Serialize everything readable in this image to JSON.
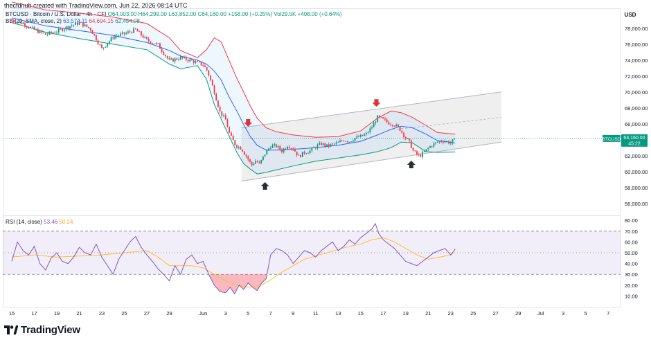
{
  "header": {
    "text": "thecfdhub created with TradingView.com, Jun 22, 2026 08:14 UTC"
  },
  "legend": {
    "symbol": "BTCUSD · Bitcoin / U.S. Dollar · 4h · CFI",
    "ohlc": "O64,003.00  H64,299.00  L63,852.00  C64,160.00  +158.00 (+0.25%)  Vol29.5K  +408.00 (+0.64%)",
    "bb_label": "BB (20, SMA, close, 2)",
    "bb_mid": "63,574.11",
    "bb_upper": "64,694.15",
    "bb_lower": "62,454.08",
    "rsi_label": "RSI (14, close)",
    "rsi_value": "53.46",
    "rsi_ma": "50.24"
  },
  "currency": "USD",
  "logo_text": "TradingView",
  "colors": {
    "up": "#089981",
    "down": "#f23645",
    "bb_mid": "#2962ff",
    "bb_upper": "#f23645",
    "bb_lower": "#089981",
    "rsi": "#7e57c2",
    "rsi_ma": "#fbc02d",
    "arrow_down": "#e0303a",
    "arrow_up": "#2a2e39"
  },
  "chart_data": {
    "type": "candlestick",
    "title": "BTCUSD · Bitcoin / U.S. Dollar · 4h · CFI",
    "price_axis": {
      "ylim": [
        54500,
        80500
      ],
      "ticks": [
        56000,
        58000,
        60000,
        62000,
        64000,
        66000,
        68000,
        70000,
        72000,
        74000,
        76000,
        78000
      ],
      "tick_labels": [
        "56,000.00",
        "58,000.00",
        "60,000.00",
        "62,000.00",
        "64,000.00",
        "66,000.00",
        "68,000.00",
        "70,000.00",
        "72,000.00",
        "74,000.00",
        "76,000.00",
        "78,000.00"
      ]
    },
    "x_axis": {
      "ticks": [
        0,
        2,
        4,
        6,
        8,
        10,
        12,
        14,
        17,
        19,
        21,
        23,
        25,
        27,
        29,
        31,
        33,
        35,
        37,
        39,
        41,
        43,
        45,
        47,
        49,
        51,
        53
      ],
      "tick_labels": [
        "15",
        "17",
        "19",
        "21",
        "23",
        "25",
        "27",
        "29",
        "Jun",
        "3",
        "5",
        "7",
        "9",
        "11",
        "13",
        "15",
        "17",
        "19",
        "21",
        "23",
        "25",
        "27",
        "29",
        "Jul",
        "3",
        "5",
        "7"
      ]
    },
    "last_price": {
      "label": "BTCUSD",
      "value": "64,160.00",
      "countdown": "45:22"
    },
    "keypoints": [
      [
        0,
        79000
      ],
      [
        1,
        78600
      ],
      [
        2,
        77800
      ],
      [
        3,
        77200
      ],
      [
        4,
        77600
      ],
      [
        5,
        78200
      ],
      [
        6,
        78700
      ],
      [
        7,
        77900
      ],
      [
        8,
        75400
      ],
      [
        9,
        76900
      ],
      [
        10,
        77300
      ],
      [
        11,
        77800
      ],
      [
        12,
        76500
      ],
      [
        13,
        75900
      ],
      [
        14,
        73900
      ],
      [
        15,
        74300
      ],
      [
        16,
        73900
      ],
      [
        17,
        73400
      ],
      [
        17.4,
        72600
      ],
      [
        18,
        70000
      ],
      [
        18.5,
        67500
      ],
      [
        19,
        66500
      ],
      [
        19.4,
        64500
      ],
      [
        19.9,
        63300
      ],
      [
        20.4,
        62900
      ],
      [
        20.9,
        61800
      ],
      [
        21.3,
        60800
      ],
      [
        21.7,
        61400
      ],
      [
        22,
        60900
      ],
      [
        22.6,
        62500
      ],
      [
        23,
        63200
      ],
      [
        23.5,
        63200
      ],
      [
        24,
        62600
      ],
      [
        24.5,
        63300
      ],
      [
        25,
        62900
      ],
      [
        25.5,
        61900
      ],
      [
        26,
        62400
      ],
      [
        26.5,
        62600
      ],
      [
        27,
        63100
      ],
      [
        27.5,
        63500
      ],
      [
        28,
        63200
      ],
      [
        28.5,
        63400
      ],
      [
        29,
        63600
      ],
      [
        29.5,
        64000
      ],
      [
        30,
        63800
      ],
      [
        30.5,
        64200
      ],
      [
        31,
        64400
      ],
      [
        31.5,
        64700
      ],
      [
        32,
        65600
      ],
      [
        32.5,
        66800
      ],
      [
        33,
        66500
      ],
      [
        33.5,
        66100
      ],
      [
        34,
        65900
      ],
      [
        34.5,
        65300
      ],
      [
        35,
        64200
      ],
      [
        35.3,
        63800
      ],
      [
        35.7,
        62500
      ],
      [
        36.2,
        61900
      ],
      [
        36.7,
        62500
      ],
      [
        37.2,
        63200
      ],
      [
        37.8,
        63700
      ],
      [
        38.4,
        63900
      ],
      [
        39,
        63600
      ],
      [
        39.4,
        64160
      ]
    ],
    "bb_upper_points": [
      [
        0,
        81300
      ],
      [
        3,
        80300
      ],
      [
        6,
        79900
      ],
      [
        9,
        79400
      ],
      [
        12,
        78600
      ],
      [
        14,
        76800
      ],
      [
        15,
        75200
      ],
      [
        16.5,
        74300
      ],
      [
        17.3,
        75300
      ],
      [
        18,
        76800
      ],
      [
        18.6,
        76300
      ],
      [
        19.3,
        74000
      ],
      [
        20,
        71700
      ],
      [
        20.6,
        70000
      ],
      [
        21.2,
        68200
      ],
      [
        21.8,
        66700
      ],
      [
        22.6,
        65500
      ],
      [
        23.5,
        65000
      ],
      [
        25,
        64600
      ],
      [
        27,
        64300
      ],
      [
        29,
        64400
      ],
      [
        31,
        65100
      ],
      [
        32.5,
        66700
      ],
      [
        33.7,
        67600
      ],
      [
        34.6,
        67400
      ],
      [
        35.6,
        66800
      ],
      [
        36.8,
        65800
      ],
      [
        37.8,
        64900
      ],
      [
        39.4,
        64700
      ]
    ],
    "bb_mid_points": [
      [
        0,
        79300
      ],
      [
        3,
        78300
      ],
      [
        6,
        77700
      ],
      [
        9,
        77100
      ],
      [
        12,
        76200
      ],
      [
        14,
        75200
      ],
      [
        15,
        74500
      ],
      [
        16.5,
        74000
      ],
      [
        17.3,
        73500
      ],
      [
        18,
        72600
      ],
      [
        18.6,
        71500
      ],
      [
        19.3,
        69400
      ],
      [
        20,
        67600
      ],
      [
        20.6,
        65900
      ],
      [
        21.2,
        64400
      ],
      [
        21.8,
        63300
      ],
      [
        22.6,
        62700
      ],
      [
        23.5,
        62700
      ],
      [
        25,
        62800
      ],
      [
        27,
        63000
      ],
      [
        29,
        63300
      ],
      [
        31,
        63800
      ],
      [
        32.5,
        64600
      ],
      [
        33.7,
        65300
      ],
      [
        34.6,
        65700
      ],
      [
        35.6,
        65500
      ],
      [
        36.8,
        64700
      ],
      [
        37.8,
        63900
      ],
      [
        39.4,
        63574
      ]
    ],
    "bb_lower_points": [
      [
        0,
        78700
      ],
      [
        3,
        77500
      ],
      [
        6,
        76700
      ],
      [
        9,
        76000
      ],
      [
        12,
        75300
      ],
      [
        14,
        73500
      ],
      [
        15,
        72900
      ],
      [
        16.5,
        73300
      ],
      [
        17.3,
        71600
      ],
      [
        18,
        68400
      ],
      [
        18.6,
        66600
      ],
      [
        19.3,
        64500
      ],
      [
        20,
        62400
      ],
      [
        20.6,
        61000
      ],
      [
        21.2,
        60300
      ],
      [
        21.8,
        59700
      ],
      [
        22.6,
        59900
      ],
      [
        23.5,
        60200
      ],
      [
        25,
        60700
      ],
      [
        27,
        61300
      ],
      [
        29,
        61700
      ],
      [
        31,
        62100
      ],
      [
        32.5,
        62500
      ],
      [
        33.7,
        63000
      ],
      [
        34.6,
        63700
      ],
      [
        35.6,
        63600
      ],
      [
        36.8,
        62500
      ],
      [
        37.8,
        62400
      ],
      [
        39.4,
        62454
      ]
    ],
    "channel": {
      "lower": [
        [
          20.4,
          58800
        ],
        [
          43.5,
          63700
        ]
      ],
      "upper": [
        [
          20.4,
          65500
        ],
        [
          43.5,
          70000
        ]
      ],
      "mid": [
        [
          33.5,
          65200
        ],
        [
          43.5,
          66800
        ]
      ]
    },
    "arrows": [
      {
        "dir": "down",
        "x": 21,
        "y": 65800
      },
      {
        "dir": "up",
        "x": 22.5,
        "y": 58500
      },
      {
        "dir": "down",
        "x": 32.4,
        "y": 68300
      },
      {
        "dir": "up",
        "x": 35.5,
        "y": 61200
      }
    ],
    "rsi": {
      "ylim": [
        0,
        84
      ],
      "ticks": [
        10,
        20,
        30,
        40,
        50,
        60,
        70,
        80
      ],
      "tick_labels": [
        "10.00",
        "20.00",
        "30.00",
        "40.00",
        "50.00",
        "60.00",
        "70.00",
        "80.00"
      ],
      "band": [
        30,
        70
      ],
      "mid": 50,
      "points": [
        [
          0,
          42
        ],
        [
          0.5,
          60
        ],
        [
          1,
          52
        ],
        [
          1.5,
          48
        ],
        [
          2,
          56
        ],
        [
          2.5,
          40
        ],
        [
          3,
          34
        ],
        [
          3.5,
          45
        ],
        [
          4,
          50
        ],
        [
          4.5,
          42
        ],
        [
          5,
          40
        ],
        [
          5.5,
          46
        ],
        [
          6,
          55
        ],
        [
          6.5,
          50
        ],
        [
          7,
          48
        ],
        [
          7.5,
          58
        ],
        [
          8,
          46
        ],
        [
          8.5,
          38
        ],
        [
          9,
          30
        ],
        [
          9.5,
          44
        ],
        [
          10,
          52
        ],
        [
          10.5,
          60
        ],
        [
          11,
          65
        ],
        [
          11.5,
          55
        ],
        [
          12,
          48
        ],
        [
          12.5,
          42
        ],
        [
          13,
          35
        ],
        [
          13.5,
          30
        ],
        [
          14,
          24
        ],
        [
          14.5,
          38
        ],
        [
          15,
          30
        ],
        [
          15.5,
          44
        ],
        [
          16,
          48
        ],
        [
          16.5,
          40
        ],
        [
          17,
          42
        ],
        [
          17.5,
          30
        ],
        [
          18,
          20
        ],
        [
          18.5,
          14
        ],
        [
          19,
          13
        ],
        [
          19.4,
          18
        ],
        [
          19.8,
          12
        ],
        [
          20.2,
          20
        ],
        [
          20.6,
          16
        ],
        [
          21,
          22
        ],
        [
          21.4,
          18
        ],
        [
          21.8,
          15
        ],
        [
          22.2,
          22
        ],
        [
          22.6,
          26
        ],
        [
          23,
          48
        ],
        [
          23.5,
          54
        ],
        [
          24,
          52
        ],
        [
          24.5,
          48
        ],
        [
          25,
          40
        ],
        [
          25.5,
          46
        ],
        [
          26,
          52
        ],
        [
          26.5,
          50
        ],
        [
          27,
          46
        ],
        [
          27.5,
          52
        ],
        [
          28,
          56
        ],
        [
          28.5,
          60
        ],
        [
          29,
          52
        ],
        [
          29.5,
          56
        ],
        [
          30,
          62
        ],
        [
          30.5,
          58
        ],
        [
          31,
          64
        ],
        [
          31.5,
          68
        ],
        [
          32,
          72
        ],
        [
          32.3,
          77
        ],
        [
          32.6,
          68
        ],
        [
          33,
          62
        ],
        [
          33.5,
          58
        ],
        [
          34,
          54
        ],
        [
          34.5,
          48
        ],
        [
          35,
          42
        ],
        [
          35.5,
          40
        ],
        [
          36,
          38
        ],
        [
          36.5,
          42
        ],
        [
          37,
          46
        ],
        [
          37.5,
          50
        ],
        [
          38,
          52
        ],
        [
          38.5,
          54
        ],
        [
          39,
          48
        ],
        [
          39.4,
          53.46
        ]
      ],
      "ma_points": [
        [
          0,
          46
        ],
        [
          2,
          48
        ],
        [
          4,
          46
        ],
        [
          6,
          47
        ],
        [
          8,
          48
        ],
        [
          10,
          50
        ],
        [
          12,
          52
        ],
        [
          13,
          46
        ],
        [
          14,
          38
        ],
        [
          16,
          38
        ],
        [
          17,
          36
        ],
        [
          18,
          30
        ],
        [
          19,
          24
        ],
        [
          20,
          20
        ],
        [
          21,
          18
        ],
        [
          22,
          19
        ],
        [
          23,
          25
        ],
        [
          24,
          32
        ],
        [
          25,
          38
        ],
        [
          26,
          44
        ],
        [
          27,
          47
        ],
        [
          28,
          50
        ],
        [
          29,
          53
        ],
        [
          30,
          56
        ],
        [
          31,
          58
        ],
        [
          32,
          62
        ],
        [
          33,
          64
        ],
        [
          34,
          60
        ],
        [
          35,
          54
        ],
        [
          36,
          48
        ],
        [
          37,
          44
        ],
        [
          38,
          46
        ],
        [
          39,
          48
        ],
        [
          39.4,
          50.24
        ]
      ]
    }
  }
}
